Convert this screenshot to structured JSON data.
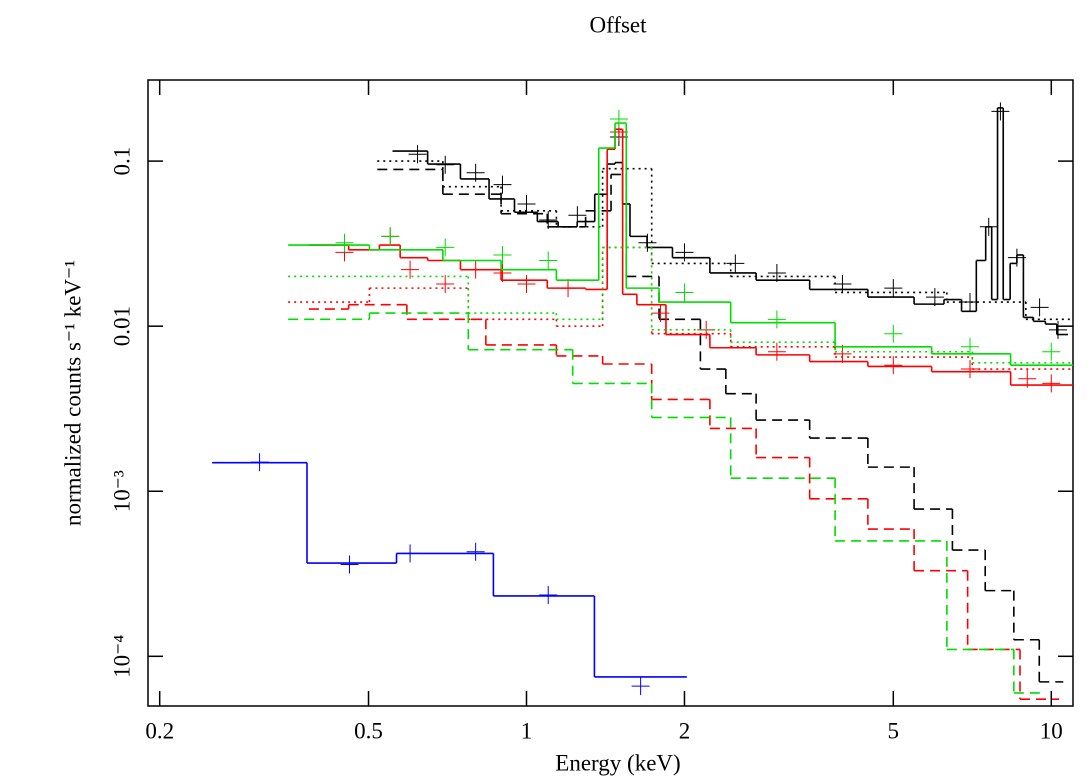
{
  "chart_data": {
    "type": "line",
    "title": "Offset",
    "x_label": "Energy (keV)",
    "y_label": "normalized counts s⁻¹ keV⁻¹",
    "xscale": "log",
    "yscale": "log",
    "xlim": [
      0.19,
      11
    ],
    "ylim": [
      5e-05,
      0.31
    ],
    "xticks": [
      0.2,
      0.5,
      1,
      2,
      5,
      10
    ],
    "yticks": [
      0.1,
      0.01,
      {
        "value": 0.001,
        "label": "10⁻³"
      },
      {
        "value": 0.0001,
        "label": "10⁻⁴"
      }
    ],
    "series": [
      {
        "color": "#000000",
        "style": "step",
        "dash": "solid",
        "x": [
          0.6,
          0.7,
          0.8,
          0.9,
          1.0,
          1.1,
          1.2,
          1.3,
          1.4,
          1.45,
          1.5,
          1.55,
          1.6,
          1.8,
          2.0,
          2.5,
          3,
          4,
          5,
          6,
          6.5,
          7,
          7.4,
          7.6,
          7.8,
          8.0,
          8.2,
          8.5,
          8.7,
          9,
          9.5,
          10,
          10.5
        ],
        "values": [
          0.115,
          0.096,
          0.078,
          0.059,
          0.049,
          0.043,
          0.04,
          0.043,
          0.063,
          0.096,
          0.098,
          0.055,
          0.035,
          0.03,
          0.026,
          0.021,
          0.019,
          0.0167,
          0.015,
          0.0136,
          0.0145,
          0.0123,
          0.025,
          0.04,
          0.0145,
          0.21,
          0.0145,
          0.024,
          0.027,
          0.0113,
          0.0107,
          0.0103,
          0.0089
        ]
      },
      {
        "color": "#000000",
        "style": "step",
        "dash": "dashed",
        "x": [
          0.6,
          0.8,
          1.0,
          1.2,
          1.4,
          1.5,
          1.6,
          2.0,
          2.3,
          2.5,
          3,
          4,
          5,
          6,
          7,
          8,
          9,
          10
        ],
        "values": [
          0.089,
          0.063,
          0.048,
          0.04,
          0.05,
          0.083,
          0.02,
          0.011,
          0.0055,
          0.0039,
          0.0027,
          0.0021,
          0.0014,
          0.00078,
          0.00044,
          0.00025,
          0.000126,
          7e-05
        ]
      },
      {
        "color": "#000000",
        "style": "step",
        "dash": "dotted",
        "x": [
          0.6,
          0.8,
          1.0,
          1.3,
          1.5,
          2.0,
          3,
          5,
          8,
          10
        ],
        "values": [
          0.1,
          0.07,
          0.05,
          0.04,
          0.09,
          0.024,
          0.02,
          0.016,
          0.014,
          0.011
        ]
      },
      {
        "color": "#000000",
        "style": "points",
        "x": [
          0.62,
          0.7,
          0.8,
          0.9,
          1.0,
          1.1,
          1.25,
          1.5,
          1.7,
          2.0,
          2.5,
          3,
          4,
          5,
          6,
          7,
          7.6,
          8.0,
          8.6,
          9.5,
          10.3
        ],
        "values": [
          0.11,
          0.095,
          0.085,
          0.072,
          0.055,
          0.044,
          0.047,
          0.14,
          0.032,
          0.028,
          0.024,
          0.021,
          0.018,
          0.017,
          0.015,
          0.014,
          0.04,
          0.2,
          0.026,
          0.013,
          0.0095
        ]
      },
      {
        "color": "#ff0000",
        "style": "step",
        "dash": "solid",
        "x": [
          0.42,
          0.5,
          0.55,
          0.6,
          0.7,
          0.8,
          1.0,
          1.2,
          1.4,
          1.45,
          1.5,
          1.55,
          1.7,
          2.0,
          2.5,
          3,
          4,
          5,
          7,
          10
        ],
        "values": [
          0.031,
          0.029,
          0.031,
          0.026,
          0.025,
          0.022,
          0.019,
          0.017,
          0.0167,
          0.118,
          0.156,
          0.0156,
          0.0135,
          0.0089,
          0.0074,
          0.0067,
          0.0061,
          0.0057,
          0.0053,
          0.0044
        ]
      },
      {
        "color": "#ff0000",
        "style": "step",
        "dash": "dashed",
        "x": [
          0.42,
          0.5,
          0.7,
          1.0,
          1.3,
          1.5,
          2.0,
          2.5,
          3,
          4,
          5,
          6,
          8,
          9.5
        ],
        "values": [
          0.0127,
          0.0135,
          0.011,
          0.0077,
          0.0066,
          0.0059,
          0.0036,
          0.0024,
          0.0016,
          0.0009,
          0.00059,
          0.00033,
          0.00011,
          5.5e-05
        ]
      },
      {
        "color": "#ff0000",
        "style": "step",
        "dash": "dotted",
        "x": [
          0.42,
          0.6,
          1.0,
          1.3,
          1.5,
          2.0,
          3,
          5,
          10
        ],
        "values": [
          0.014,
          0.017,
          0.011,
          0.01,
          0.03,
          0.009,
          0.0075,
          0.0065,
          0.0055
        ]
      },
      {
        "color": "#ff0000",
        "style": "points",
        "x": [
          0.45,
          0.55,
          0.6,
          0.7,
          0.8,
          0.9,
          1.0,
          1.2,
          1.5,
          1.8,
          2.2,
          3,
          4,
          5,
          7,
          9,
          10
        ],
        "values": [
          0.028,
          0.035,
          0.022,
          0.018,
          0.022,
          0.021,
          0.018,
          0.017,
          0.15,
          0.012,
          0.0095,
          0.007,
          0.0068,
          0.0058,
          0.0055,
          0.0048,
          0.0045
        ]
      },
      {
        "color": "#00dd00",
        "style": "step",
        "dash": "solid",
        "x": [
          0.42,
          0.6,
          0.8,
          1.0,
          1.3,
          1.45,
          1.5,
          1.6,
          2.0,
          3,
          5,
          7,
          10
        ],
        "values": [
          0.031,
          0.029,
          0.025,
          0.022,
          0.019,
          0.12,
          0.17,
          0.017,
          0.014,
          0.0105,
          0.0075,
          0.0068,
          0.0058
        ]
      },
      {
        "color": "#00dd00",
        "style": "step",
        "dash": "dashed",
        "x": [
          0.42,
          0.6,
          1.0,
          1.5,
          2.0,
          3,
          5,
          8,
          9
        ],
        "values": [
          0.011,
          0.012,
          0.0072,
          0.0045,
          0.0028,
          0.0012,
          0.0005,
          0.00011,
          6e-05
        ]
      },
      {
        "color": "#00dd00",
        "style": "step",
        "dash": "dotted",
        "x": [
          0.42,
          0.6,
          1.0,
          1.3,
          1.5,
          2.0,
          3,
          5,
          10
        ],
        "values": [
          0.02,
          0.02,
          0.012,
          0.011,
          0.03,
          0.0095,
          0.008,
          0.007,
          0.006
        ]
      },
      {
        "color": "#00dd00",
        "style": "points",
        "x": [
          0.45,
          0.55,
          0.7,
          0.9,
          1.1,
          1.5,
          2.0,
          3,
          5,
          7,
          10
        ],
        "values": [
          0.032,
          0.035,
          0.03,
          0.027,
          0.025,
          0.18,
          0.016,
          0.011,
          0.009,
          0.0075,
          0.007
        ]
      },
      {
        "color": "#0000ff",
        "style": "step",
        "dash": "solid",
        "x": [
          0.31,
          0.47,
          0.68,
          1.1,
          1.65
        ],
        "values": [
          0.00149,
          0.000367,
          0.00042,
          0.000232,
          7.5e-05
        ]
      },
      {
        "color": "#0000ff",
        "style": "points",
        "x": [
          0.31,
          0.46,
          0.6,
          0.8,
          1.1,
          1.65
        ],
        "values": [
          0.0015,
          0.00036,
          0.00042,
          0.00043,
          0.000235,
          6.6e-05
        ]
      }
    ]
  }
}
